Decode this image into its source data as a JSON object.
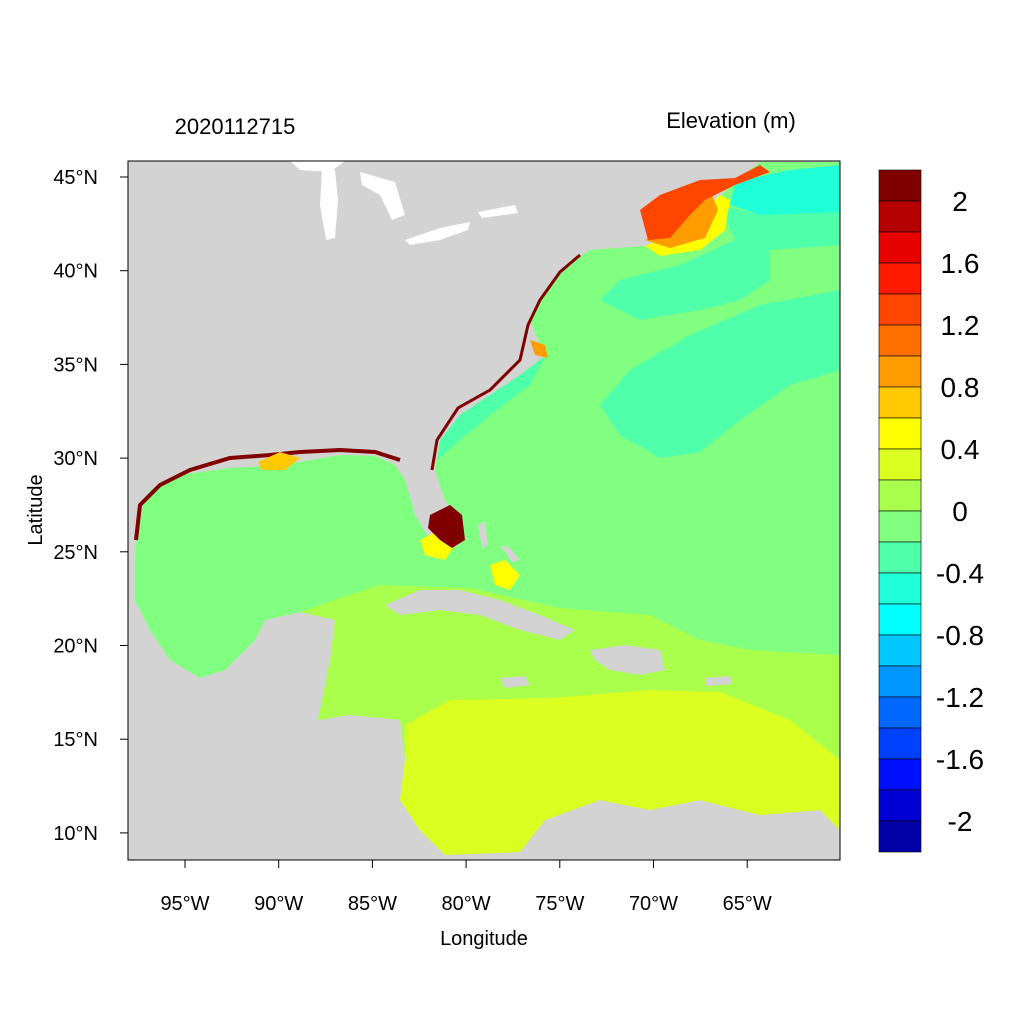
{
  "title_left": "2020112715",
  "title_right": "Elevation (m)",
  "xlabel": "Longitude",
  "ylabel": "Latitude",
  "x_ticks": [
    "95°W",
    "90°W",
    "85°W",
    "80°W",
    "75°W",
    "70°W",
    "65°W"
  ],
  "y_ticks": [
    "45°N",
    "40°N",
    "35°N",
    "30°N",
    "25°N",
    "20°N",
    "15°N",
    "10°N"
  ],
  "colorbar": {
    "labels": [
      "2",
      "1.6",
      "1.2",
      "0.8",
      "0.4",
      "0",
      "-0.4",
      "-0.8",
      "-1.2",
      "-1.6",
      "-2"
    ],
    "levels": [
      2.0,
      1.8,
      1.6,
      1.4,
      1.2,
      1.0,
      0.8,
      0.6,
      0.4,
      0.2,
      0.0,
      -0.2,
      -0.4,
      -0.6,
      -0.8,
      -1.0,
      -1.2,
      -1.4,
      -1.6,
      -1.8,
      -2.0
    ],
    "colors": [
      "#800000",
      "#B40000",
      "#E60000",
      "#FF1A00",
      "#FF4600",
      "#FF7000",
      "#FF9C00",
      "#FFC800",
      "#FFFF00",
      "#DAFF20",
      "#AAFF4D",
      "#80FF80",
      "#50FFAA",
      "#20FFD8",
      "#00FFFF",
      "#00C8FF",
      "#0096FF",
      "#0068FF",
      "#0040FF",
      "#0010FF",
      "#0000D4",
      "#0000A6"
    ]
  },
  "colors": {
    "land": "#D3D3D3",
    "lakes": "#FFFFFF"
  }
}
